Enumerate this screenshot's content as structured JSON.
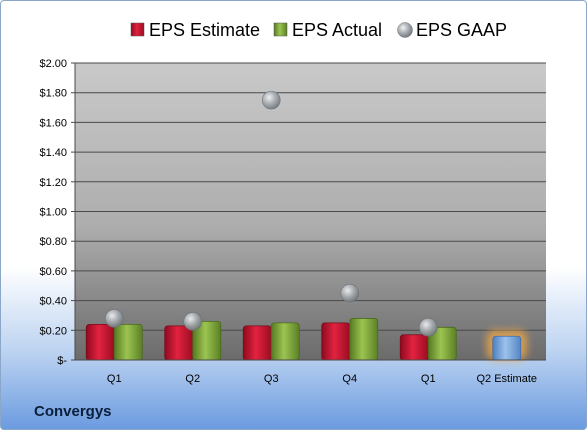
{
  "company": "Convergys",
  "colors": {
    "estimate": "#c8102e",
    "actual": "#7ea33a",
    "gaap": "#9aa0a6",
    "forecast": "#6f9fd8",
    "forecast_glow": "#f3a742"
  },
  "chart_data": {
    "type": "bar",
    "categories": [
      "Q1",
      "Q2",
      "Q3",
      "Q4",
      "Q1",
      "Q2 Estimate"
    ],
    "ylim": [
      0,
      2.0
    ],
    "yticks": [
      "$2.00",
      "$1.80",
      "$1.60",
      "$1.40",
      "$1.20",
      "$1.00",
      "$0.80",
      "$0.60",
      "$0.40",
      "$0.20",
      "$-"
    ],
    "ytick_values": [
      2.0,
      1.8,
      1.6,
      1.4,
      1.2,
      1.0,
      0.8,
      0.6,
      0.4,
      0.2,
      0
    ],
    "legend_position": "top",
    "grid": true,
    "series": [
      {
        "name": "EPS Estimate",
        "kind": "bar",
        "values": [
          0.24,
          0.23,
          0.23,
          0.25,
          0.17,
          0.16
        ]
      },
      {
        "name": "EPS Actual",
        "kind": "bar",
        "values": [
          0.24,
          0.26,
          0.25,
          0.28,
          0.22,
          null
        ]
      },
      {
        "name": "EPS GAAP",
        "kind": "scatter",
        "values": [
          0.28,
          0.26,
          1.75,
          0.45,
          0.22,
          null
        ]
      }
    ]
  }
}
